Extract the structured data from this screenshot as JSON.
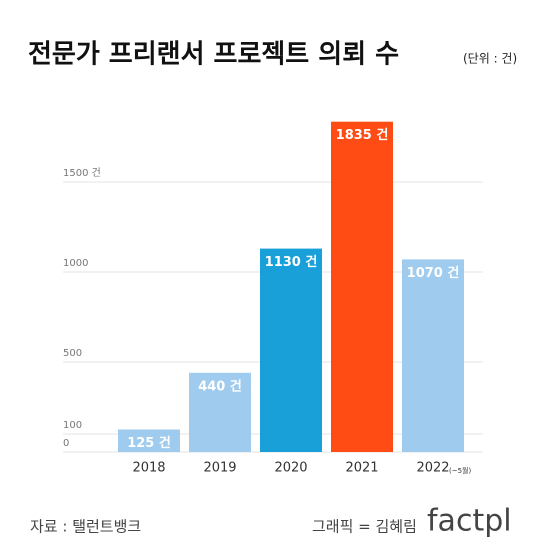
{
  "chart_data": {
    "type": "bar",
    "title": "전문가 프리랜서 프로젝트 의뢰 수",
    "subtitle": "(단위 : 건)",
    "categories": [
      "2018",
      "2019",
      "2020",
      "2021",
      "2022"
    ],
    "category_note": "(~5월)",
    "values": [
      125,
      440,
      1130,
      1835,
      1070
    ],
    "value_labels": [
      "125 건",
      "440 건",
      "1130 건",
      "1835 건",
      "1070 건"
    ],
    "colors": [
      "#9fcbee",
      "#9fcbee",
      "#1aa0d8",
      "#ff4b14",
      "#9fcbee"
    ],
    "ylim": [
      0,
      1900
    ],
    "yticks": [
      0,
      100,
      500,
      1000,
      {
        "value": 1500,
        "label": "1500 건"
      }
    ],
    "grid": true,
    "source": "자료 : 탤런트뱅크",
    "credit": "그래픽 = 김혜림",
    "logo": "factpl"
  }
}
